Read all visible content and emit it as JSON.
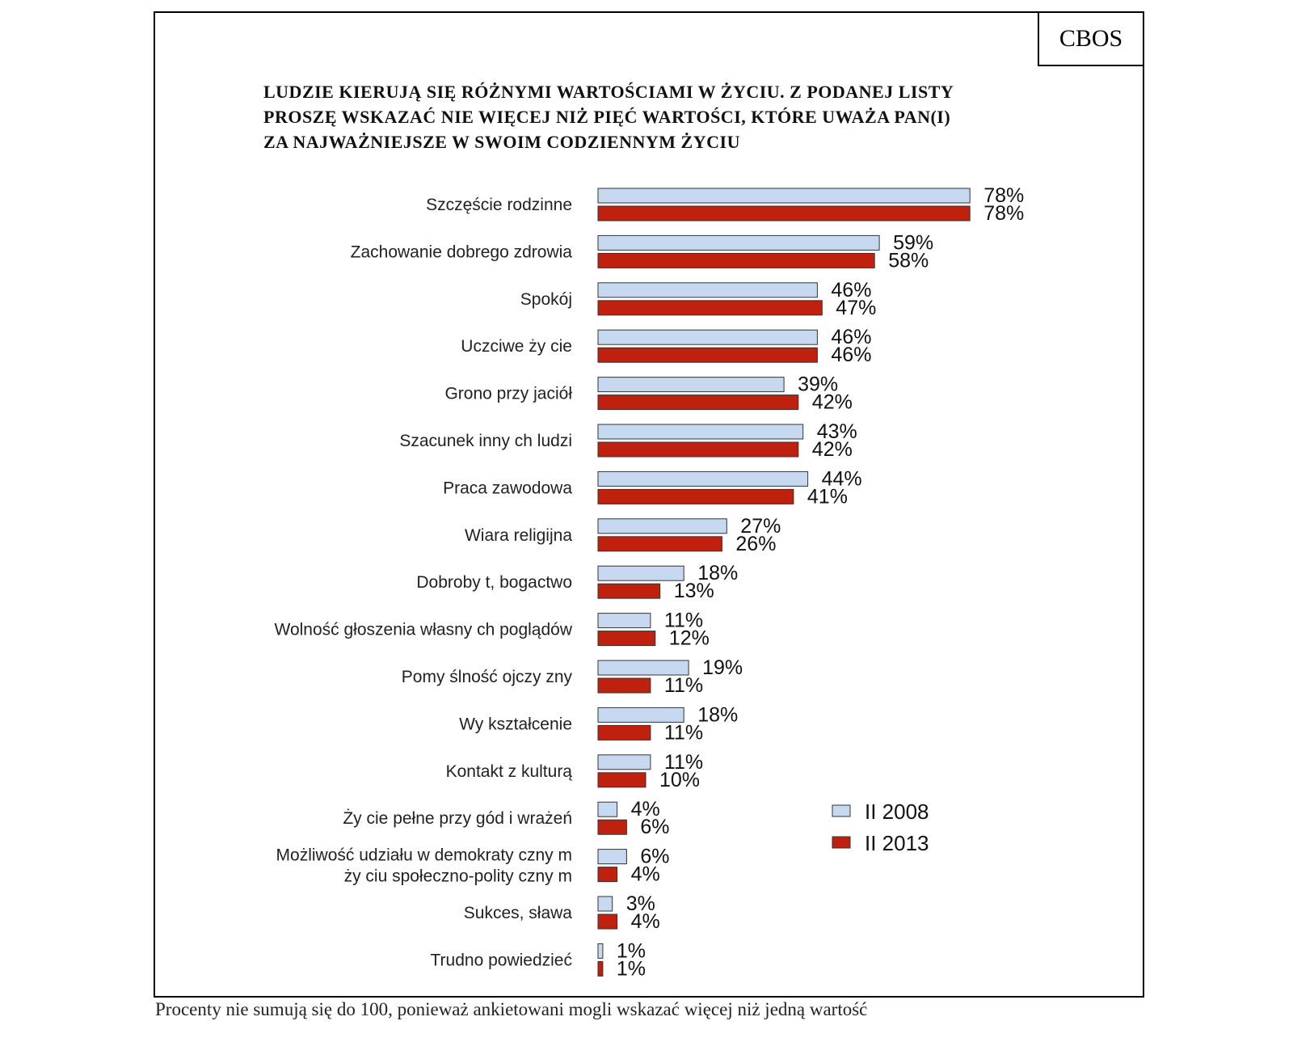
{
  "source": "CBOS",
  "title_lines": [
    "LUDZIE KIERUJĄ SIĘ RÓŻNYMI WARTOŚCIAMI W ŻYCIU. Z PODANEJ LISTY",
    "PROSZĘ WSKAZAĆ NIE WIĘCEJ NIŻ PIĘĆ WARTOŚCI, KTÓRE UWAŻA PAN(I)",
    "ZA NAJWAŻNIEJSZE W SWOIM CODZIENNYM ŻYCIU"
  ],
  "footnote": "Procenty nie sumują się do 100, ponieważ ankietowani mogli wskazać więcej niż jedną wartość",
  "chart_data": {
    "type": "bar",
    "orientation": "horizontal",
    "categories": [
      [
        "Szczęście rodzinne"
      ],
      [
        "Zachowanie dobrego zdrowia"
      ],
      [
        "Spokój"
      ],
      [
        "Uczciwe ży cie"
      ],
      [
        "Grono przy jaciół"
      ],
      [
        "Szacunek inny ch ludzi"
      ],
      [
        "Praca zawodowa"
      ],
      [
        "Wiara religijna"
      ],
      [
        "Dobroby t, bogactwo"
      ],
      [
        "Wolność głoszenia własny ch poglądów"
      ],
      [
        "Pomy ślność ojczy zny"
      ],
      [
        "Wy kształcenie"
      ],
      [
        "Kontakt z kulturą"
      ],
      [
        "Ży cie pełne przy gód i wrażeń"
      ],
      [
        "Możliwość udziału w demokraty czny m",
        "ży ciu społeczno-polity czny m"
      ],
      [
        "Sukces, sława"
      ],
      [
        "Trudno powiedzieć"
      ]
    ],
    "series": [
      {
        "name": "II 2008",
        "color": "#c6d9f0",
        "values": [
          78,
          59,
          46,
          46,
          39,
          43,
          44,
          27,
          18,
          11,
          19,
          18,
          11,
          4,
          6,
          3,
          1
        ],
        "labels": [
          "78%",
          "59%",
          "46%",
          "46%",
          "39%",
          "43%",
          "44%",
          "27%",
          "18%",
          "11%",
          "19%",
          "18%",
          "11%",
          "4%",
          "6%",
          "3%",
          "1%"
        ]
      },
      {
        "name": "II 2013",
        "color": "#c0200e",
        "values": [
          78,
          58,
          47,
          46,
          42,
          42,
          41,
          26,
          13,
          12,
          11,
          11,
          10,
          6,
          4,
          4,
          1
        ],
        "labels": [
          "78%",
          "58%",
          "47%",
          "46%",
          "42%",
          "42%",
          "41%",
          "26%",
          "13%",
          "12%",
          "11%",
          "11%",
          "10%",
          "6%",
          "4%",
          "4%",
          "1%"
        ]
      }
    ],
    "xlim": [
      0,
      100
    ],
    "legend_position": "right",
    "grid": false
  }
}
